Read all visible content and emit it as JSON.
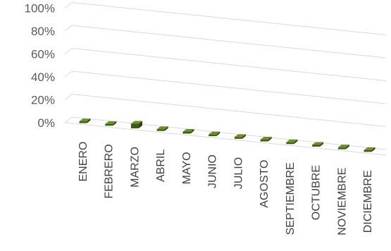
{
  "chart_data": {
    "type": "bar",
    "style": "3d-column",
    "categories": [
      "ENERO",
      "FEBRERO",
      "MARZO",
      "ABRIL",
      "MAYO",
      "JUNIO",
      "JULIO",
      "AGOSTO",
      "SEPTIEMBRE",
      "OCTUBRE",
      "NOVIEMBRE",
      "DICIEMBRE"
    ],
    "series": [
      {
        "values": [
          0.5,
          0.3,
          4.0,
          0.3,
          0.3,
          0.3,
          0.3,
          0.3,
          0.3,
          0.3,
          0.3,
          0.5
        ]
      }
    ],
    "ylim": [
      0,
      100
    ],
    "yticks": [
      "0%",
      "20%",
      "40%",
      "60%",
      "80%",
      "100%"
    ],
    "grid": true,
    "legend": "none",
    "colors": {
      "bar_front": "#3e5a14",
      "bar_top": "#6f8f2c",
      "bar_side": "#2c410e",
      "grid": "#d9d9d9",
      "text": "#595959"
    }
  }
}
